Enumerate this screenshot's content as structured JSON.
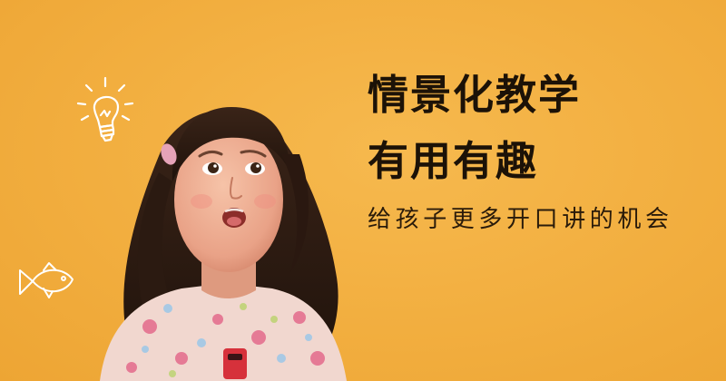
{
  "banner": {
    "headline_line1": "情景化教学",
    "headline_line2": "有用有趣",
    "subline": "给孩子更多开口讲的机会"
  },
  "colors": {
    "background": "#f2ae3f",
    "headline": "#1c1207",
    "doodle": "#ffffff",
    "dress": "#f1d7cf",
    "microphone": "#d6313b"
  },
  "icons": [
    "lightbulb-icon",
    "fish-icon"
  ]
}
